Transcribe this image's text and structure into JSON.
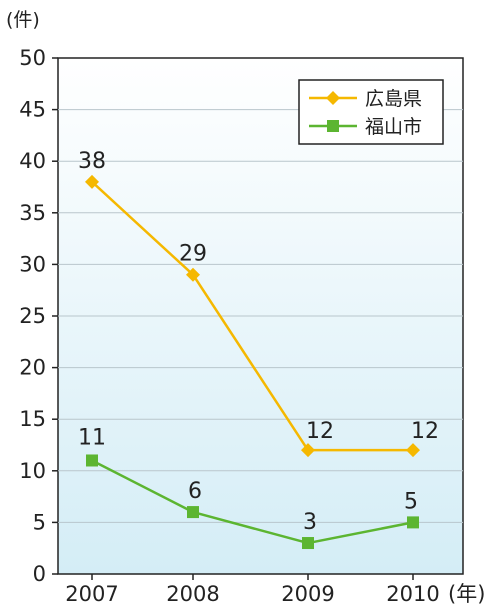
{
  "chart_data": {
    "type": "line",
    "y_unit": "(件)",
    "x_unit": "(年)",
    "categories": [
      "2007",
      "2008",
      "2009",
      "2010"
    ],
    "ylim": [
      0,
      50
    ],
    "yticks": [
      "0",
      "5",
      "10",
      "15",
      "20",
      "25",
      "30",
      "35",
      "40",
      "45",
      "50"
    ],
    "grid": true,
    "legend_position": "top-right",
    "series": [
      {
        "name": "広島県",
        "values": [
          38,
          29,
          12,
          12
        ],
        "labels": [
          "38",
          "29",
          "12",
          "12"
        ],
        "color": "#f5b800",
        "marker": "diamond"
      },
      {
        "name": "福山市",
        "values": [
          11,
          6,
          3,
          5
        ],
        "labels": [
          "11",
          "6",
          "3",
          "5"
        ],
        "color": "#5cb531",
        "marker": "square"
      }
    ],
    "background_gradient": [
      "#ffffff",
      "#d4edf6"
    ]
  }
}
